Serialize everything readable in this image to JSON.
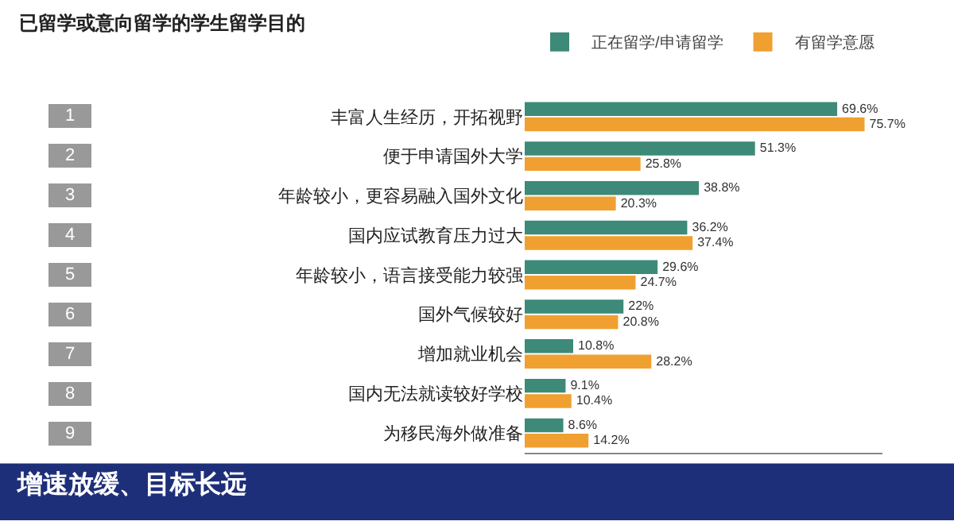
{
  "chart_data": {
    "type": "bar",
    "orientation": "horizontal",
    "title": "已留学或意向留学的学生留学目的",
    "categories": [
      "丰富人生经历，开拓视野",
      "便于申请国外大学",
      "年龄较小，更容易融入国外文化",
      "国内应试教育压力过大",
      "年龄较小，语言接受能力较强",
      "国外气候较好",
      "增加就业机会",
      "国内无法就读较好学校",
      "为移民海外做准备"
    ],
    "series": [
      {
        "name": "正在留学/申请留学",
        "color": "#3d8a78",
        "values": [
          69.6,
          51.3,
          38.8,
          36.2,
          29.6,
          22,
          10.8,
          9.1,
          8.6
        ],
        "value_labels": [
          "69.6%",
          "51.3%",
          "38.8%",
          "36.2%",
          "29.6%",
          "22%",
          "10.8%",
          "9.1%",
          "8.6%"
        ]
      },
      {
        "name": "有留学意愿",
        "color": "#f0a030",
        "values": [
          75.7,
          25.8,
          20.3,
          37.4,
          24.7,
          20.8,
          28.2,
          10.4,
          14.2
        ],
        "value_labels": [
          "75.7%",
          "25.8%",
          "20.3%",
          "37.4%",
          "24.7%",
          "20.8%",
          "28.2%",
          "10.4%",
          "14.2%"
        ]
      }
    ],
    "legend": "top right",
    "grid": false,
    "tick_labels": "y",
    "annotations": [
      "1",
      "2",
      "3",
      "4",
      "5",
      "6",
      "7",
      "8",
      "9",
      "增速放缓、目标长远"
    ]
  }
}
